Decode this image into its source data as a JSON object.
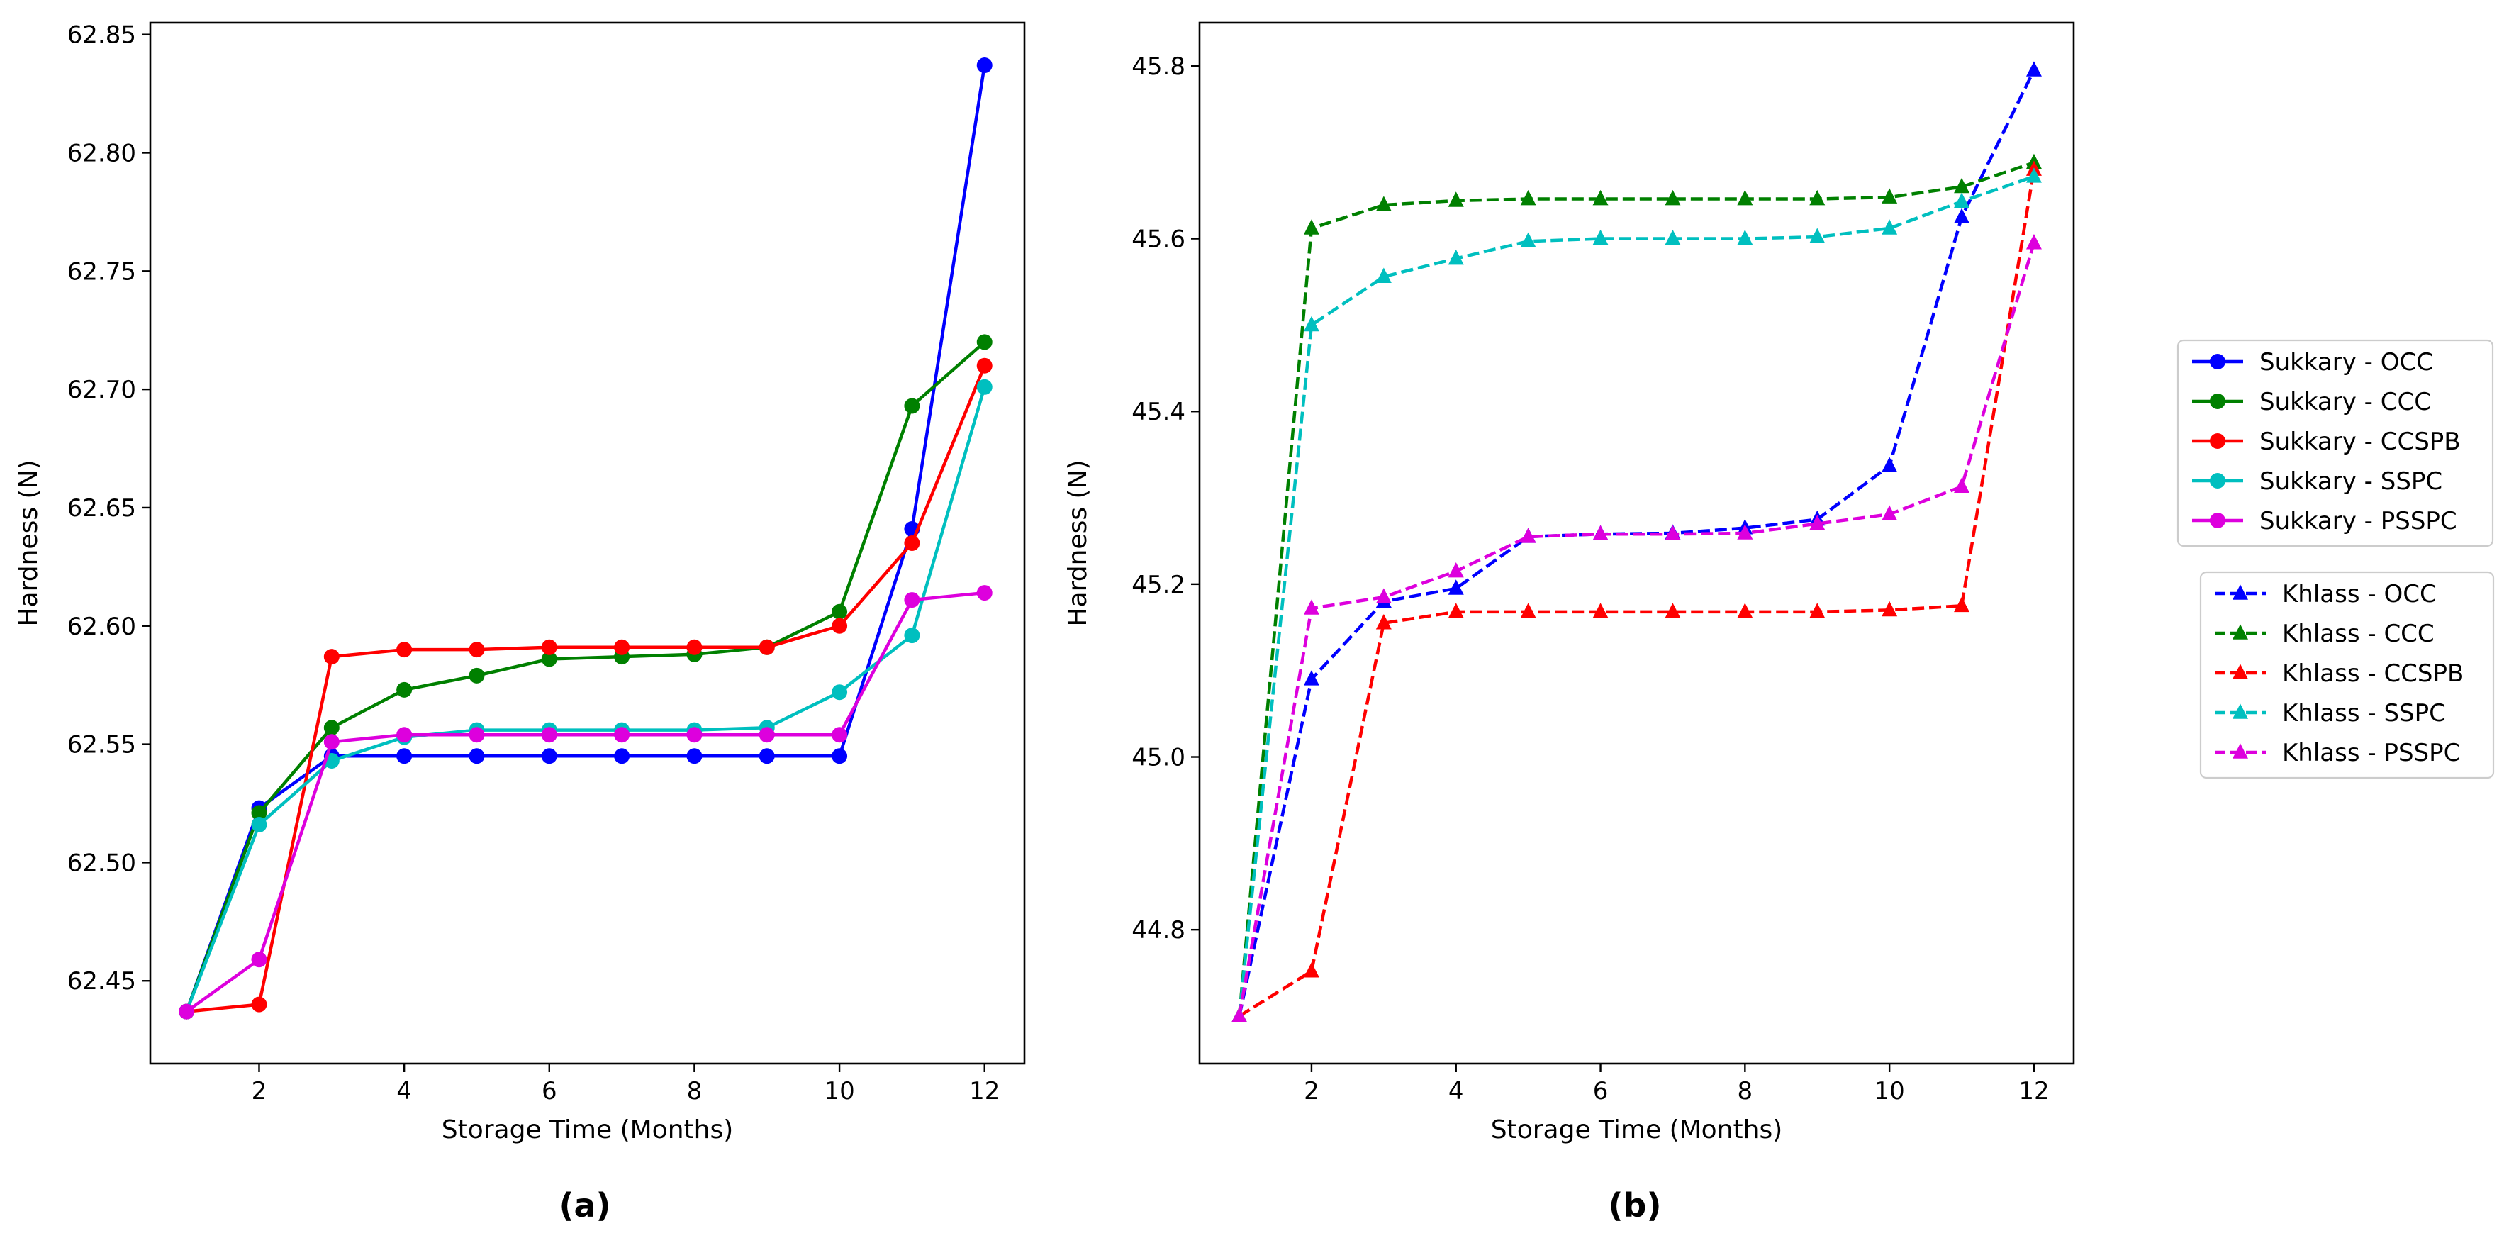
{
  "chart_data": [
    {
      "panel_label": "(a)",
      "type": "line",
      "xlabel": "Storage Time (Months)",
      "ylabel": "Hardness (N)",
      "xlim": [
        0.5,
        12.55
      ],
      "ylim": [
        62.415,
        62.855
      ],
      "xticks": [
        2,
        4,
        6,
        8,
        10,
        12
      ],
      "yticks": [
        62.45,
        62.5,
        62.55,
        62.6,
        62.65,
        62.7,
        62.75,
        62.8,
        62.85
      ],
      "ytick_decimals": 2,
      "x": [
        1,
        2,
        3,
        4,
        5,
        6,
        7,
        8,
        9,
        10,
        11,
        12
      ],
      "series": [
        {
          "name": "Sukkary - OCC",
          "color": "#0000ff",
          "marker": "circle",
          "dash": "solid",
          "values": [
            62.437,
            62.523,
            62.545,
            62.545,
            62.545,
            62.545,
            62.545,
            62.545,
            62.545,
            62.545,
            62.641,
            62.837
          ]
        },
        {
          "name": "Sukkary - CCC",
          "color": "#008000",
          "marker": "circle",
          "dash": "solid",
          "values": [
            62.437,
            62.521,
            62.557,
            62.573,
            62.579,
            62.586,
            62.587,
            62.588,
            62.591,
            62.606,
            62.693,
            62.72
          ]
        },
        {
          "name": "Sukkary - CCSPB",
          "color": "#ff0000",
          "marker": "circle",
          "dash": "solid",
          "values": [
            62.437,
            62.44,
            62.587,
            62.59,
            62.59,
            62.591,
            62.591,
            62.591,
            62.591,
            62.6,
            62.635,
            62.71
          ]
        },
        {
          "name": "Sukkary - SSPC",
          "color": "#00bfbf",
          "marker": "circle",
          "dash": "solid",
          "values": [
            62.437,
            62.516,
            62.543,
            62.553,
            62.556,
            62.556,
            62.556,
            62.556,
            62.557,
            62.572,
            62.596,
            62.701
          ]
        },
        {
          "name": "Sukkary - PSSPC",
          "color": "#dd00dd",
          "marker": "circle",
          "dash": "solid",
          "values": [
            62.437,
            62.459,
            62.551,
            62.554,
            62.554,
            62.554,
            62.554,
            62.554,
            62.554,
            62.554,
            62.611,
            62.614
          ]
        }
      ]
    },
    {
      "panel_label": "(b)",
      "type": "line",
      "xlabel": "Storage Time (Months)",
      "ylabel": "Hardness (N)",
      "xlim": [
        0.45,
        12.55
      ],
      "ylim": [
        44.645,
        45.85
      ],
      "xticks": [
        2,
        4,
        6,
        8,
        10,
        12
      ],
      "yticks": [
        44.8,
        45.0,
        45.2,
        45.4,
        45.6,
        45.8
      ],
      "ytick_decimals": 1,
      "x": [
        1,
        2,
        3,
        4,
        5,
        6,
        7,
        8,
        9,
        10,
        11,
        12
      ],
      "series": [
        {
          "name": "Khlass - OCC",
          "color": "#0000ff",
          "marker": "triangle",
          "dash": "dashed",
          "values": [
            44.7,
            45.09,
            45.18,
            45.195,
            45.255,
            45.258,
            45.259,
            45.265,
            45.275,
            45.337,
            45.625,
            45.795
          ]
        },
        {
          "name": "Khlass - CCC",
          "color": "#008000",
          "marker": "triangle",
          "dash": "dashed",
          "values": [
            44.7,
            45.612,
            45.639,
            45.644,
            45.646,
            45.646,
            45.646,
            45.646,
            45.646,
            45.648,
            45.66,
            45.688
          ]
        },
        {
          "name": "Khlass - CCSPB",
          "color": "#ff0000",
          "marker": "triangle",
          "dash": "dashed",
          "values": [
            44.7,
            44.752,
            45.155,
            45.168,
            45.168,
            45.168,
            45.168,
            45.168,
            45.168,
            45.17,
            45.175,
            45.68
          ]
        },
        {
          "name": "Khlass - SSPC",
          "color": "#00bfbf",
          "marker": "triangle",
          "dash": "dashed",
          "values": [
            44.7,
            45.5,
            45.556,
            45.577,
            45.597,
            45.6,
            45.6,
            45.6,
            45.602,
            45.612,
            45.643,
            45.672
          ]
        },
        {
          "name": "Khlass - PSSPC",
          "color": "#dd00dd",
          "marker": "triangle",
          "dash": "dashed",
          "values": [
            44.7,
            45.172,
            45.185,
            45.215,
            45.255,
            45.258,
            45.258,
            45.259,
            45.27,
            45.281,
            45.313,
            45.595
          ]
        }
      ]
    }
  ]
}
